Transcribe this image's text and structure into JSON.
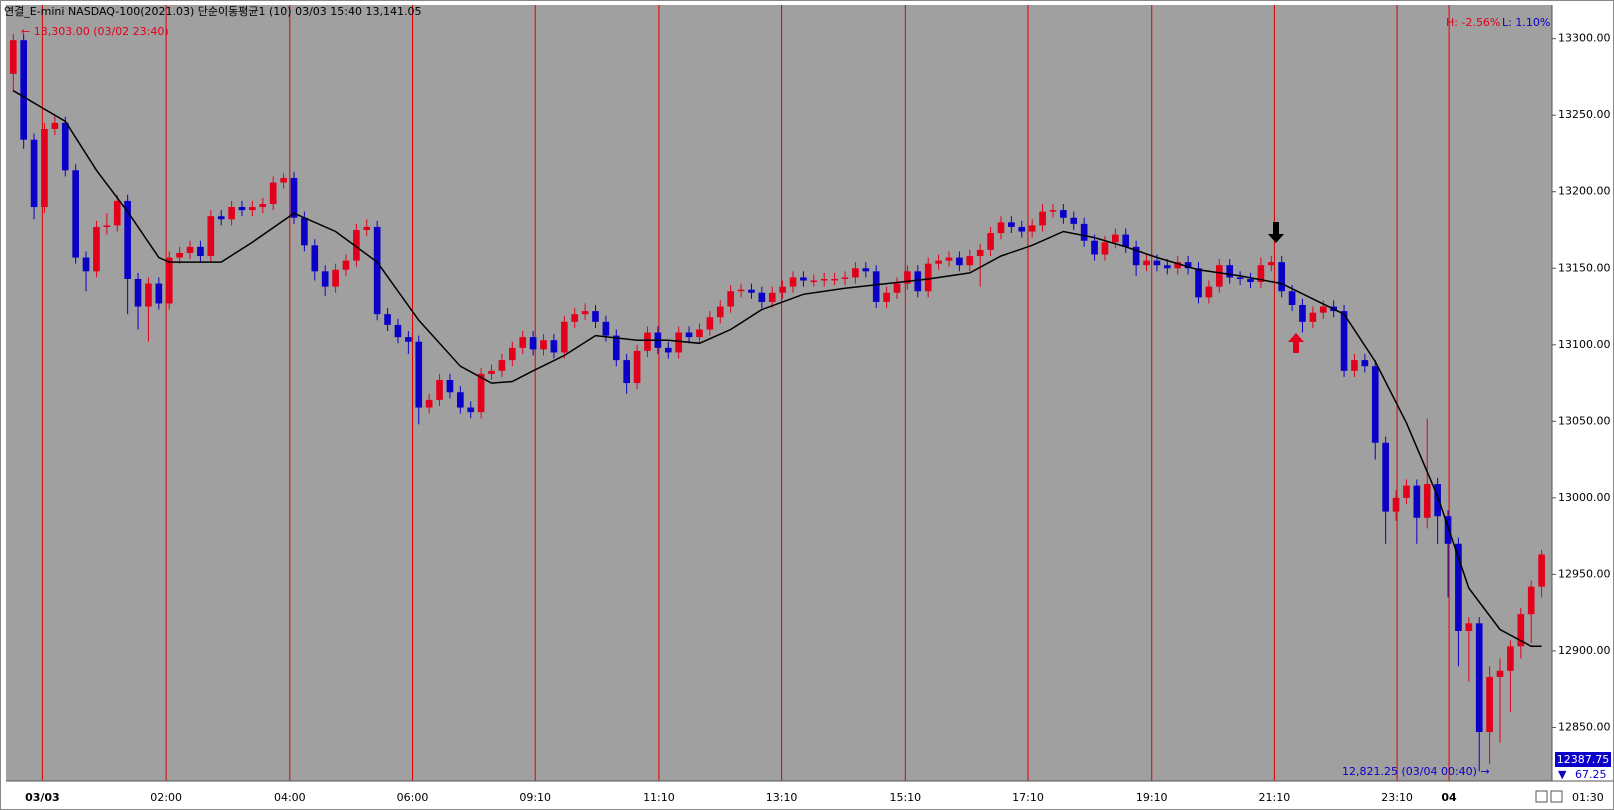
{
  "chart_data": {
    "type": "candlestick",
    "title": "연결_E-mini NASDAQ-100(2021.03) 단순이동평균1  (10) 03/03 15:40 13,141.05",
    "high_pct": "H: -2.56%",
    "low_pct": "L: 1.10%",
    "max_note": "← 13,303.00 (03/02 23:40)",
    "min_note": "12,821.25 (03/04 00:40)  →",
    "price_box": "12387.75",
    "spread": "67.25",
    "time_label": "01:30",
    "up_color": "#e3001b",
    "down_color": "#0a00c8",
    "grid_color": "#e00000",
    "xlim": [
      -0.7,
      148
    ],
    "ylim": [
      12815,
      13322
    ],
    "xticks": [
      {
        "value": 2.8,
        "label": "03/03"
      },
      {
        "value": 14.7,
        "label": "02:00"
      },
      {
        "value": 26.6,
        "label": "04:00"
      },
      {
        "value": 38.4,
        "label": "06:00"
      },
      {
        "value": 50.2,
        "label": "09:10"
      },
      {
        "value": 62.1,
        "label": "11:10"
      },
      {
        "value": 73.9,
        "label": "13:10"
      },
      {
        "value": 85.8,
        "label": "15:10"
      },
      {
        "value": 97.6,
        "label": "17:10"
      },
      {
        "value": 109.5,
        "label": "19:10"
      },
      {
        "value": 121.3,
        "label": "21:10"
      },
      {
        "value": 133.1,
        "label": "23:10"
      },
      {
        "value": 138.1,
        "label": "04"
      }
    ],
    "yticks": [
      {
        "value": 12850,
        "label": "12850.00"
      },
      {
        "value": 12900,
        "label": "12900.00"
      },
      {
        "value": 12950,
        "label": "12950.00"
      },
      {
        "value": 13000,
        "label": "13000.00"
      },
      {
        "value": 13050,
        "label": "13050.00"
      },
      {
        "value": 13100,
        "label": "13100.00"
      },
      {
        "value": 13150,
        "label": "13150.00"
      },
      {
        "value": 13200,
        "label": "13200.00"
      },
      {
        "value": 13250,
        "label": "13250.00"
      },
      {
        "value": 13300,
        "label": "13300.00"
      }
    ],
    "open": [
      13277,
      13299,
      13234,
      13190,
      13241,
      13245,
      13214,
      13157,
      13148,
      13177,
      13178,
      13194,
      13143,
      13125,
      13140,
      13127,
      13157,
      13160,
      13164,
      13158,
      13184,
      13182,
      13190,
      13188,
      13190,
      13192,
      13206,
      13209,
      13183,
      13165,
      13148,
      13138,
      13149,
      13155,
      13175,
      13177,
      13120,
      13113,
      13105,
      13102,
      13059,
      13064,
      13077,
      13069,
      13059,
      13056,
      13081,
      13083,
      13090,
      13098,
      13105,
      13097,
      13103,
      13095,
      13115,
      13120,
      13122,
      13115,
      13106,
      13090,
      13075,
      13096,
      13108,
      13098,
      13095,
      13108,
      13105,
      13110,
      13118,
      13125,
      13135,
      13136,
      13134,
      13128,
      13134,
      13138,
      13144,
      13142,
      13142,
      13143,
      13143,
      13144,
      13150,
      13148,
      13128,
      13134,
      13140,
      13148,
      13135,
      13153,
      13155,
      13157,
      13152,
      13158,
      13162,
      13173,
      13180,
      13177,
      13174,
      13178,
      13187,
      13188,
      13183,
      13179,
      13168,
      13159,
      13167,
      13172,
      13164,
      13152,
      13155,
      13152,
      13150,
      13154,
      13150,
      13131,
      13138,
      13152,
      13144,
      13143,
      13141,
      13152,
      13154,
      13135,
      13126,
      13115,
      13121,
      13125,
      13122,
      13083,
      13090,
      13086,
      13036,
      12991,
      13000,
      13008,
      12987,
      13009,
      12988,
      12970,
      12913,
      12918,
      12847,
      12883,
      12887,
      12903,
      12924,
      12942
    ],
    "high": [
      13303,
      13303,
      13238,
      13245,
      13250,
      13249,
      13218,
      13161,
      13181,
      13186,
      13198,
      13198,
      13147,
      13144,
      13144,
      13161,
      13164,
      13168,
      13168,
      13188,
      13188,
      13194,
      13194,
      13194,
      13196,
      13210,
      13212,
      13213,
      13187,
      13169,
      13152,
      13153,
      13159,
      13179,
      13182,
      13181,
      13124,
      13117,
      13109,
      13106,
      13068,
      13081,
      13081,
      13073,
      13063,
      13085,
      13087,
      13094,
      13102,
      13109,
      13109,
      13107,
      13107,
      13119,
      13124,
      13127,
      13126,
      13119,
      13110,
      13094,
      13100,
      13112,
      13112,
      13102,
      13112,
      13112,
      13114,
      13122,
      13129,
      13139,
      13140,
      13140,
      13138,
      13138,
      13142,
      13148,
      13148,
      13146,
      13147,
      13147,
      13148,
      13154,
      13154,
      13152,
      13138,
      13144,
      13152,
      13152,
      13157,
      13159,
      13161,
      13161,
      13162,
      13166,
      13177,
      13184,
      13184,
      13181,
      13182,
      13192,
      13192,
      13192,
      13187,
      13183,
      13172,
      13171,
      13176,
      13176,
      13168,
      13159,
      13159,
      13156,
      13158,
      13158,
      13154,
      13142,
      13156,
      13156,
      13148,
      13147,
      13157,
      13158,
      13158,
      13139,
      13130,
      13125,
      13129,
      13129,
      13126,
      13094,
      13094,
      13090,
      13040,
      13005,
      13012,
      13012,
      13052,
      13013,
      12992,
      12974,
      12922,
      12922,
      12890,
      12895,
      12907,
      12928,
      12946,
      12966
    ],
    "low": [
      13265,
      13228,
      13182,
      13186,
      13237,
      13210,
      13153,
      13135,
      13144,
      13172,
      13174,
      13120,
      13110,
      13102,
      13123,
      13123,
      13153,
      13156,
      13154,
      13154,
      13178,
      13178,
      13184,
      13184,
      13186,
      13188,
      13202,
      13179,
      13161,
      13142,
      13132,
      13134,
      13145,
      13151,
      13171,
      13116,
      13109,
      13101,
      13094,
      13048,
      13055,
      13060,
      13065,
      13055,
      13052,
      13052,
      13077,
      13079,
      13086,
      13094,
      13093,
      13093,
      13091,
      13091,
      13111,
      13116,
      13111,
      13102,
      13086,
      13068,
      13071,
      13092,
      13094,
      13091,
      13091,
      13101,
      13101,
      13106,
      13114,
      13121,
      13131,
      13130,
      13124,
      13124,
      13130,
      13134,
      13138,
      13138,
      13138,
      13139,
      13139,
      13140,
      13144,
      13124,
      13124,
      13130,
      13136,
      13131,
      13131,
      13149,
      13151,
      13148,
      13148,
      13138,
      13158,
      13169,
      13173,
      13170,
      13170,
      13174,
      13183,
      13179,
      13175,
      13164,
      13155,
      13155,
      13163,
      13160,
      13145,
      13148,
      13148,
      13146,
      13146,
      13146,
      13127,
      13127,
      13134,
      13140,
      13139,
      13137,
      13137,
      13148,
      13131,
      13122,
      13108,
      13111,
      13117,
      13118,
      13079,
      13079,
      13082,
      13025,
      12970,
      12985,
      12996,
      12970,
      12980,
      12970,
      12935,
      12890,
      12880,
      12821.25,
      12826,
      12840,
      12860,
      12895,
      12905,
      12935
    ],
    "close": [
      13299,
      13234,
      13190,
      13241,
      13245,
      13214,
      13157,
      13148,
      13177,
      13178,
      13194,
      13143,
      13125,
      13140,
      13127,
      13157,
      13160,
      13164,
      13158,
      13184,
      13182,
      13190,
      13188,
      13190,
      13192,
      13206,
      13209,
      13183,
      13165,
      13148,
      13138,
      13149,
      13155,
      13175,
      13177,
      13120,
      13113,
      13105,
      13102,
      13059,
      13064,
      13077,
      13069,
      13059,
      13056,
      13081,
      13083,
      13090,
      13098,
      13105,
      13097,
      13103,
      13095,
      13115,
      13120,
      13122,
      13115,
      13106,
      13090,
      13075,
      13096,
      13108,
      13098,
      13095,
      13108,
      13105,
      13110,
      13118,
      13125,
      13135,
      13136,
      13134,
      13128,
      13134,
      13138,
      13144,
      13142,
      13142,
      13143,
      13143,
      13144,
      13150,
      13148,
      13128,
      13134,
      13140,
      13148,
      13135,
      13153,
      13155,
      13157,
      13152,
      13158,
      13162,
      13173,
      13180,
      13177,
      13174,
      13178,
      13187,
      13188,
      13183,
      13179,
      13168,
      13159,
      13167,
      13172,
      13164,
      13152,
      13155,
      13152,
      13150,
      13154,
      13150,
      13131,
      13138,
      13152,
      13144,
      13143,
      13141,
      13152,
      13154,
      13135,
      13126,
      13115,
      13121,
      13125,
      13122,
      13083,
      13090,
      13086,
      13036,
      12991,
      13000,
      13008,
      12987,
      13009,
      12988,
      12970,
      12913,
      12918,
      12847,
      12883,
      12887,
      12903,
      12924,
      12942,
      12963
    ],
    "ma": {
      "color": "#000000",
      "x": [
        0,
        2,
        5,
        8,
        11,
        14,
        15,
        20,
        23,
        27,
        31,
        35,
        39,
        43,
        46,
        48,
        50,
        53,
        56,
        60,
        63,
        66,
        69,
        72,
        76,
        80,
        84,
        88,
        92,
        95,
        98,
        101,
        104,
        107,
        110,
        114,
        118,
        122,
        125,
        128,
        131,
        134,
        137,
        140,
        143,
        146,
        147
      ],
      "values": [
        13266,
        13258,
        13246,
        13214,
        13187,
        13157,
        13154,
        13154,
        13167,
        13186,
        13174,
        13154,
        13116,
        13086,
        13075,
        13076,
        13083,
        13093,
        13106,
        13103,
        13103,
        13101,
        13110,
        13123,
        13133,
        13137,
        13140,
        13143,
        13147,
        13158,
        13165,
        13174,
        13170,
        13164,
        13157,
        13149,
        13145,
        13140,
        13130,
        13120,
        13089,
        13049,
        13001,
        12941,
        12914,
        12903,
        12903
      ]
    }
  }
}
